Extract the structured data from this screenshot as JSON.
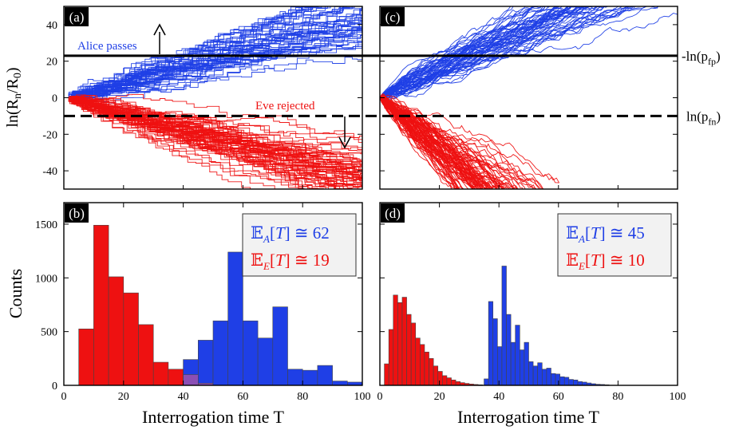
{
  "colors": {
    "alice": "#1f3fe6",
    "eve": "#ee1111",
    "overlap": "#8b4fb4",
    "axis": "#000000",
    "box_bg": "#f2f2f2"
  },
  "labels": {
    "y_top": "ln(R_n/R_0)",
    "y_bottom": "Counts",
    "x_axis": "Interrogation time T",
    "threshold_fp": "-ln(p_fp)",
    "threshold_fn": "ln(p_fn)",
    "alice_passes": "Alice passes",
    "eve_rejected": "Eve rejected"
  },
  "chart_data": [
    {
      "panel": "(a)",
      "type": "line",
      "title": "",
      "xlabel": "",
      "ylabel": "ln(Rn/R0)",
      "xlim": [
        0,
        100
      ],
      "ylim": [
        -50,
        50
      ],
      "yticks": [
        40,
        20,
        0,
        -20,
        -40
      ],
      "series": [
        {
          "name": "Alice",
          "color": "blue",
          "start": [
            0,
            0
          ],
          "mean_slope": 0.47,
          "spread_at_T50": [
            14,
            28
          ]
        },
        {
          "name": "Eve",
          "color": "red",
          "start": [
            0,
            0
          ],
          "mean_slope": -0.45,
          "spread_at_T50": [
            -10,
            -36
          ]
        }
      ],
      "thresholds": [
        {
          "name": "-ln(p_fp)",
          "y": 23,
          "style": "solid"
        },
        {
          "name": "ln(p_fn)",
          "y": -10,
          "style": "dashed"
        }
      ],
      "annotations": [
        "Alice passes",
        "Eve rejected"
      ]
    },
    {
      "panel": "(c)",
      "type": "line",
      "xlim": [
        0,
        100
      ],
      "ylim": [
        -50,
        50
      ],
      "series": [
        {
          "name": "Alice",
          "color": "blue",
          "start": [
            0,
            0
          ],
          "mean_slope": 0.8,
          "value_at_T50": 37
        },
        {
          "name": "Eve",
          "color": "red",
          "start": [
            0,
            0
          ],
          "mean_slope": -1.4,
          "reaches_bottom_near_T": 35
        }
      ],
      "thresholds": [
        {
          "name": "-ln(p_fp)",
          "y": 23,
          "style": "solid"
        },
        {
          "name": "ln(p_fn)",
          "y": -10,
          "style": "dashed"
        }
      ]
    },
    {
      "panel": "(b)",
      "type": "bar",
      "xlabel": "Interrogation time T",
      "ylabel": "Counts",
      "xlim": [
        0,
        100
      ],
      "ylim": [
        0,
        1700
      ],
      "xticks": [
        0,
        20,
        40,
        60,
        80,
        100
      ],
      "yticks": [
        0,
        500,
        1000,
        1500
      ],
      "bin_width": 5,
      "series": [
        {
          "name": "Eve",
          "color": "red",
          "bins_start": [
            5,
            10,
            15,
            20,
            25,
            30,
            35,
            40,
            45
          ],
          "values": [
            525,
            1490,
            1010,
            860,
            565,
            215,
            150,
            100,
            20
          ]
        },
        {
          "name": "Alice",
          "color": "blue",
          "bins_start": [
            40,
            45,
            50,
            55,
            60,
            65,
            70,
            75,
            80,
            85,
            90,
            95
          ],
          "values": [
            240,
            420,
            600,
            1240,
            600,
            440,
            730,
            150,
            140,
            185,
            40,
            30
          ]
        }
      ],
      "legend": {
        "E_A": "62",
        "E_E": "19"
      }
    },
    {
      "panel": "(d)",
      "type": "bar",
      "xlabel": "Interrogation time T",
      "xlim": [
        0,
        100
      ],
      "ylim": [
        0,
        1700
      ],
      "xticks": [
        0,
        20,
        40,
        60,
        80,
        100
      ],
      "bin_width": 1.5,
      "series": [
        {
          "name": "Eve",
          "color": "red",
          "bins_start": [
            1.5,
            3,
            4.5,
            6,
            7.5,
            9,
            10.5,
            12,
            13.5,
            15,
            16.5,
            18,
            19.5,
            21,
            22.5,
            24,
            25.5,
            27,
            28.5,
            30,
            31.5,
            33
          ],
          "values": [
            200,
            520,
            840,
            770,
            820,
            660,
            580,
            440,
            380,
            310,
            250,
            180,
            130,
            90,
            70,
            50,
            35,
            25,
            18,
            12,
            8,
            5
          ]
        },
        {
          "name": "Alice",
          "color": "blue",
          "bins_start": [
            35,
            36.5,
            38,
            39.5,
            41,
            42.5,
            44,
            45.5,
            47,
            48.5,
            50,
            51.5,
            53,
            54.5,
            56,
            57.5,
            59,
            60.5,
            62,
            63.5,
            65,
            66.5,
            68,
            69.5,
            71,
            72.5,
            74,
            75.5
          ],
          "values": [
            60,
            780,
            620,
            360,
            1110,
            660,
            400,
            560,
            330,
            400,
            220,
            180,
            210,
            150,
            160,
            110,
            105,
            80,
            75,
            55,
            50,
            35,
            30,
            22,
            15,
            10,
            8,
            5
          ]
        }
      ],
      "legend": {
        "E_A": "45",
        "E_E": "10"
      }
    }
  ]
}
